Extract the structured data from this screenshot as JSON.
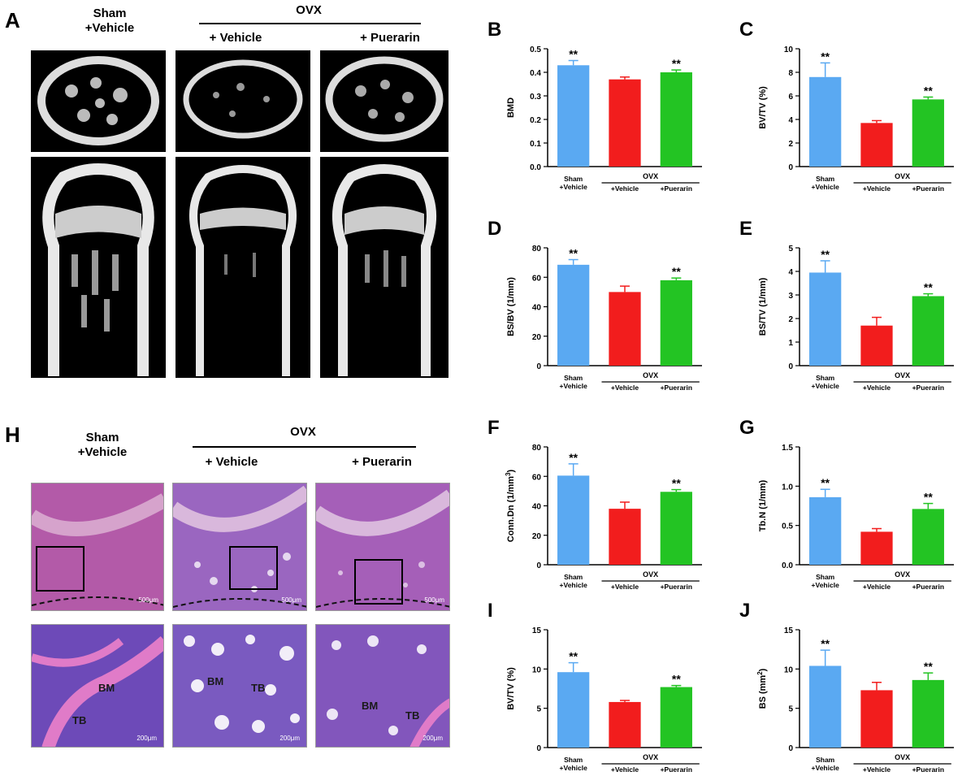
{
  "microct": {
    "letter": "A",
    "groups": [
      "Sham\n+Vehicle",
      "OVX",
      "+ Vehicle",
      "+ Puerarin"
    ]
  },
  "histology": {
    "letter": "H",
    "groups": [
      "Sham\n+Vehicle",
      "OVX",
      "+ Vehicle",
      "+ Puerarin"
    ],
    "scale_top": [
      "500μm",
      "500μm",
      "500μm"
    ],
    "scale_bottom": [
      "200μm",
      "200μm",
      "200μm"
    ],
    "labels": {
      "tb": "TB",
      "bm": "BM"
    }
  },
  "colors": {
    "sham": "#5aa9f2",
    "vehicle": "#f21d1d",
    "puerarin": "#23c423",
    "axis": "#000000"
  },
  "chart_data": [
    {
      "letter": "B",
      "type": "bar",
      "ylabel": "BMD",
      "ylim": [
        0,
        0.5
      ],
      "ticks": [
        "0.0",
        "0.1",
        "0.2",
        "0.3",
        "0.4",
        "0.5"
      ],
      "categories": [
        "Sham\n+Vehicle",
        "+Vehicle",
        "+Puerarin"
      ],
      "group_label": "OVX",
      "values": [
        0.43,
        0.37,
        0.4
      ],
      "errors": [
        0.02,
        0.01,
        0.01
      ],
      "annotations": [
        "**",
        "",
        "**"
      ]
    },
    {
      "letter": "C",
      "type": "bar",
      "ylabel": "BV/TV (%)",
      "ylim": [
        0,
        10
      ],
      "ticks": [
        "0",
        "2",
        "4",
        "6",
        "8",
        "10"
      ],
      "categories": [
        "Sham\n+Vehicle",
        "+Vehicle",
        "+Puerarin"
      ],
      "group_label": "OVX",
      "values": [
        7.6,
        3.7,
        5.7
      ],
      "errors": [
        1.2,
        0.2,
        0.2
      ],
      "annotations": [
        "**",
        "",
        "**"
      ]
    },
    {
      "letter": "D",
      "type": "bar",
      "ylabel": "BS/BV (1/mm)",
      "ylim": [
        0,
        80
      ],
      "ticks": [
        "0",
        "20",
        "40",
        "60",
        "80"
      ],
      "categories": [
        "Sham\n+Vehicle",
        "+Vehicle",
        "+Puerarin"
      ],
      "group_label": "OVX",
      "values": [
        68.5,
        50,
        58
      ],
      "errors": [
        3.5,
        4,
        1.5
      ],
      "annotations": [
        "**",
        "",
        "**"
      ]
    },
    {
      "letter": "E",
      "type": "bar",
      "ylabel": "BS/TV (1/mm)",
      "ylim": [
        0,
        5
      ],
      "ticks": [
        "0",
        "1",
        "2",
        "3",
        "4",
        "5"
      ],
      "categories": [
        "Sham\n+Vehicle",
        "+Vehicle",
        "+Puerarin"
      ],
      "group_label": "OVX",
      "values": [
        3.95,
        1.7,
        2.95
      ],
      "errors": [
        0.5,
        0.35,
        0.1
      ],
      "annotations": [
        "**",
        "",
        "**"
      ]
    },
    {
      "letter": "F",
      "type": "bar",
      "ylabel": "Conn.Dn (1/mm",
      "ylabel_sup": "3",
      "ylabel_tail": ")",
      "ylim": [
        0,
        80
      ],
      "ticks": [
        "0",
        "20",
        "40",
        "60",
        "80"
      ],
      "categories": [
        "Sham\n+Vehicle",
        "+Vehicle",
        "+Puerarin"
      ],
      "group_label": "OVX",
      "values": [
        60.5,
        38,
        49.5
      ],
      "errors": [
        8,
        4.5,
        1.5
      ],
      "annotations": [
        "**",
        "",
        "**"
      ]
    },
    {
      "letter": "G",
      "type": "bar",
      "ylabel": "Tb.N (1/mm)",
      "ylim": [
        0,
        1.5
      ],
      "ticks": [
        "0.0",
        "0.5",
        "1.0",
        "1.5"
      ],
      "categories": [
        "Sham\n+Vehicle",
        "+Vehicle",
        "+Puerarin"
      ],
      "group_label": "OVX",
      "values": [
        0.86,
        0.42,
        0.71
      ],
      "errors": [
        0.1,
        0.04,
        0.07
      ],
      "annotations": [
        "**",
        "",
        "**"
      ]
    },
    {
      "letter": "I",
      "type": "bar",
      "ylabel": "BV/TV (%)",
      "ylim": [
        0,
        15
      ],
      "ticks": [
        "0",
        "5",
        "10",
        "15"
      ],
      "categories": [
        "Sham\n+Vehicle",
        "+Vehicle",
        "+Puerarin"
      ],
      "group_label": "OVX",
      "values": [
        9.6,
        5.8,
        7.7
      ],
      "errors": [
        1.2,
        0.2,
        0.2
      ],
      "annotations": [
        "**",
        "",
        "**"
      ]
    },
    {
      "letter": "J",
      "type": "bar",
      "ylabel": "BS (mm",
      "ylabel_sup": "2",
      "ylabel_tail": ")",
      "ylim": [
        0,
        15
      ],
      "ticks": [
        "0",
        "5",
        "10",
        "15"
      ],
      "categories": [
        "Sham\n+Vehicle",
        "+Vehicle",
        "+Puerarin"
      ],
      "group_label": "OVX",
      "values": [
        10.4,
        7.3,
        8.6
      ],
      "errors": [
        2,
        1,
        0.9
      ],
      "annotations": [
        "**",
        "",
        "**"
      ]
    }
  ]
}
